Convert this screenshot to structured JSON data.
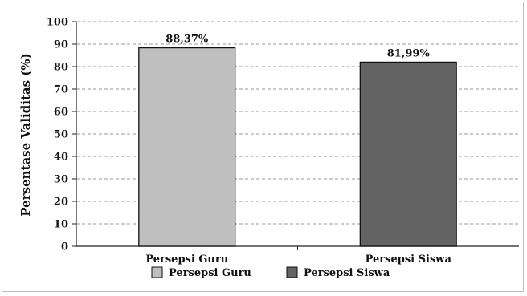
{
  "chart_data": {
    "type": "bar",
    "title": "",
    "xlabel": "",
    "ylabel": "Persentase Validitas (%)",
    "ylim": [
      0,
      100
    ],
    "yticks": [
      0,
      10,
      20,
      30,
      40,
      50,
      60,
      70,
      80,
      90,
      100
    ],
    "grid": true,
    "legend_position": "bottom",
    "categories": [
      "Persepsi Guru",
      "Persepsi Siswa"
    ],
    "values": [
      88.37,
      81.99
    ],
    "data_labels": [
      "88,37%",
      "81,99%"
    ],
    "colors": [
      "#bfbfbf",
      "#636363"
    ],
    "legend": [
      {
        "label": "Persepsi Guru",
        "color": "#bfbfbf"
      },
      {
        "label": "Persepsi Siswa",
        "color": "#636363"
      }
    ]
  }
}
